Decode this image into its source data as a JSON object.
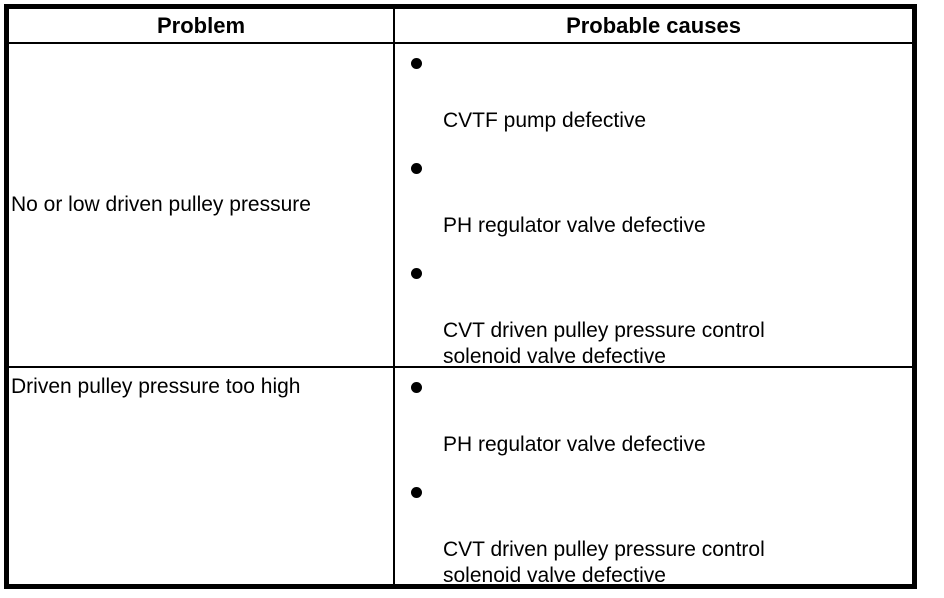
{
  "colors": {
    "background": "#ffffff",
    "border": "#000000",
    "text": "#000000"
  },
  "bullet_glyph": "●",
  "table": {
    "headers": {
      "problem": "Problem",
      "causes": "Probable causes"
    },
    "rows": [
      {
        "problem": "No or low driven pulley pressure",
        "causes": [
          "CVTF pump defective",
          "PH regulator valve defective",
          "CVT driven pulley pressure control solenoid valve defective"
        ]
      },
      {
        "problem": "Driven pulley pressure too high",
        "causes": [
          "PH regulator valve defective",
          "CVT driven pulley pressure control solenoid valve defective"
        ]
      }
    ]
  }
}
